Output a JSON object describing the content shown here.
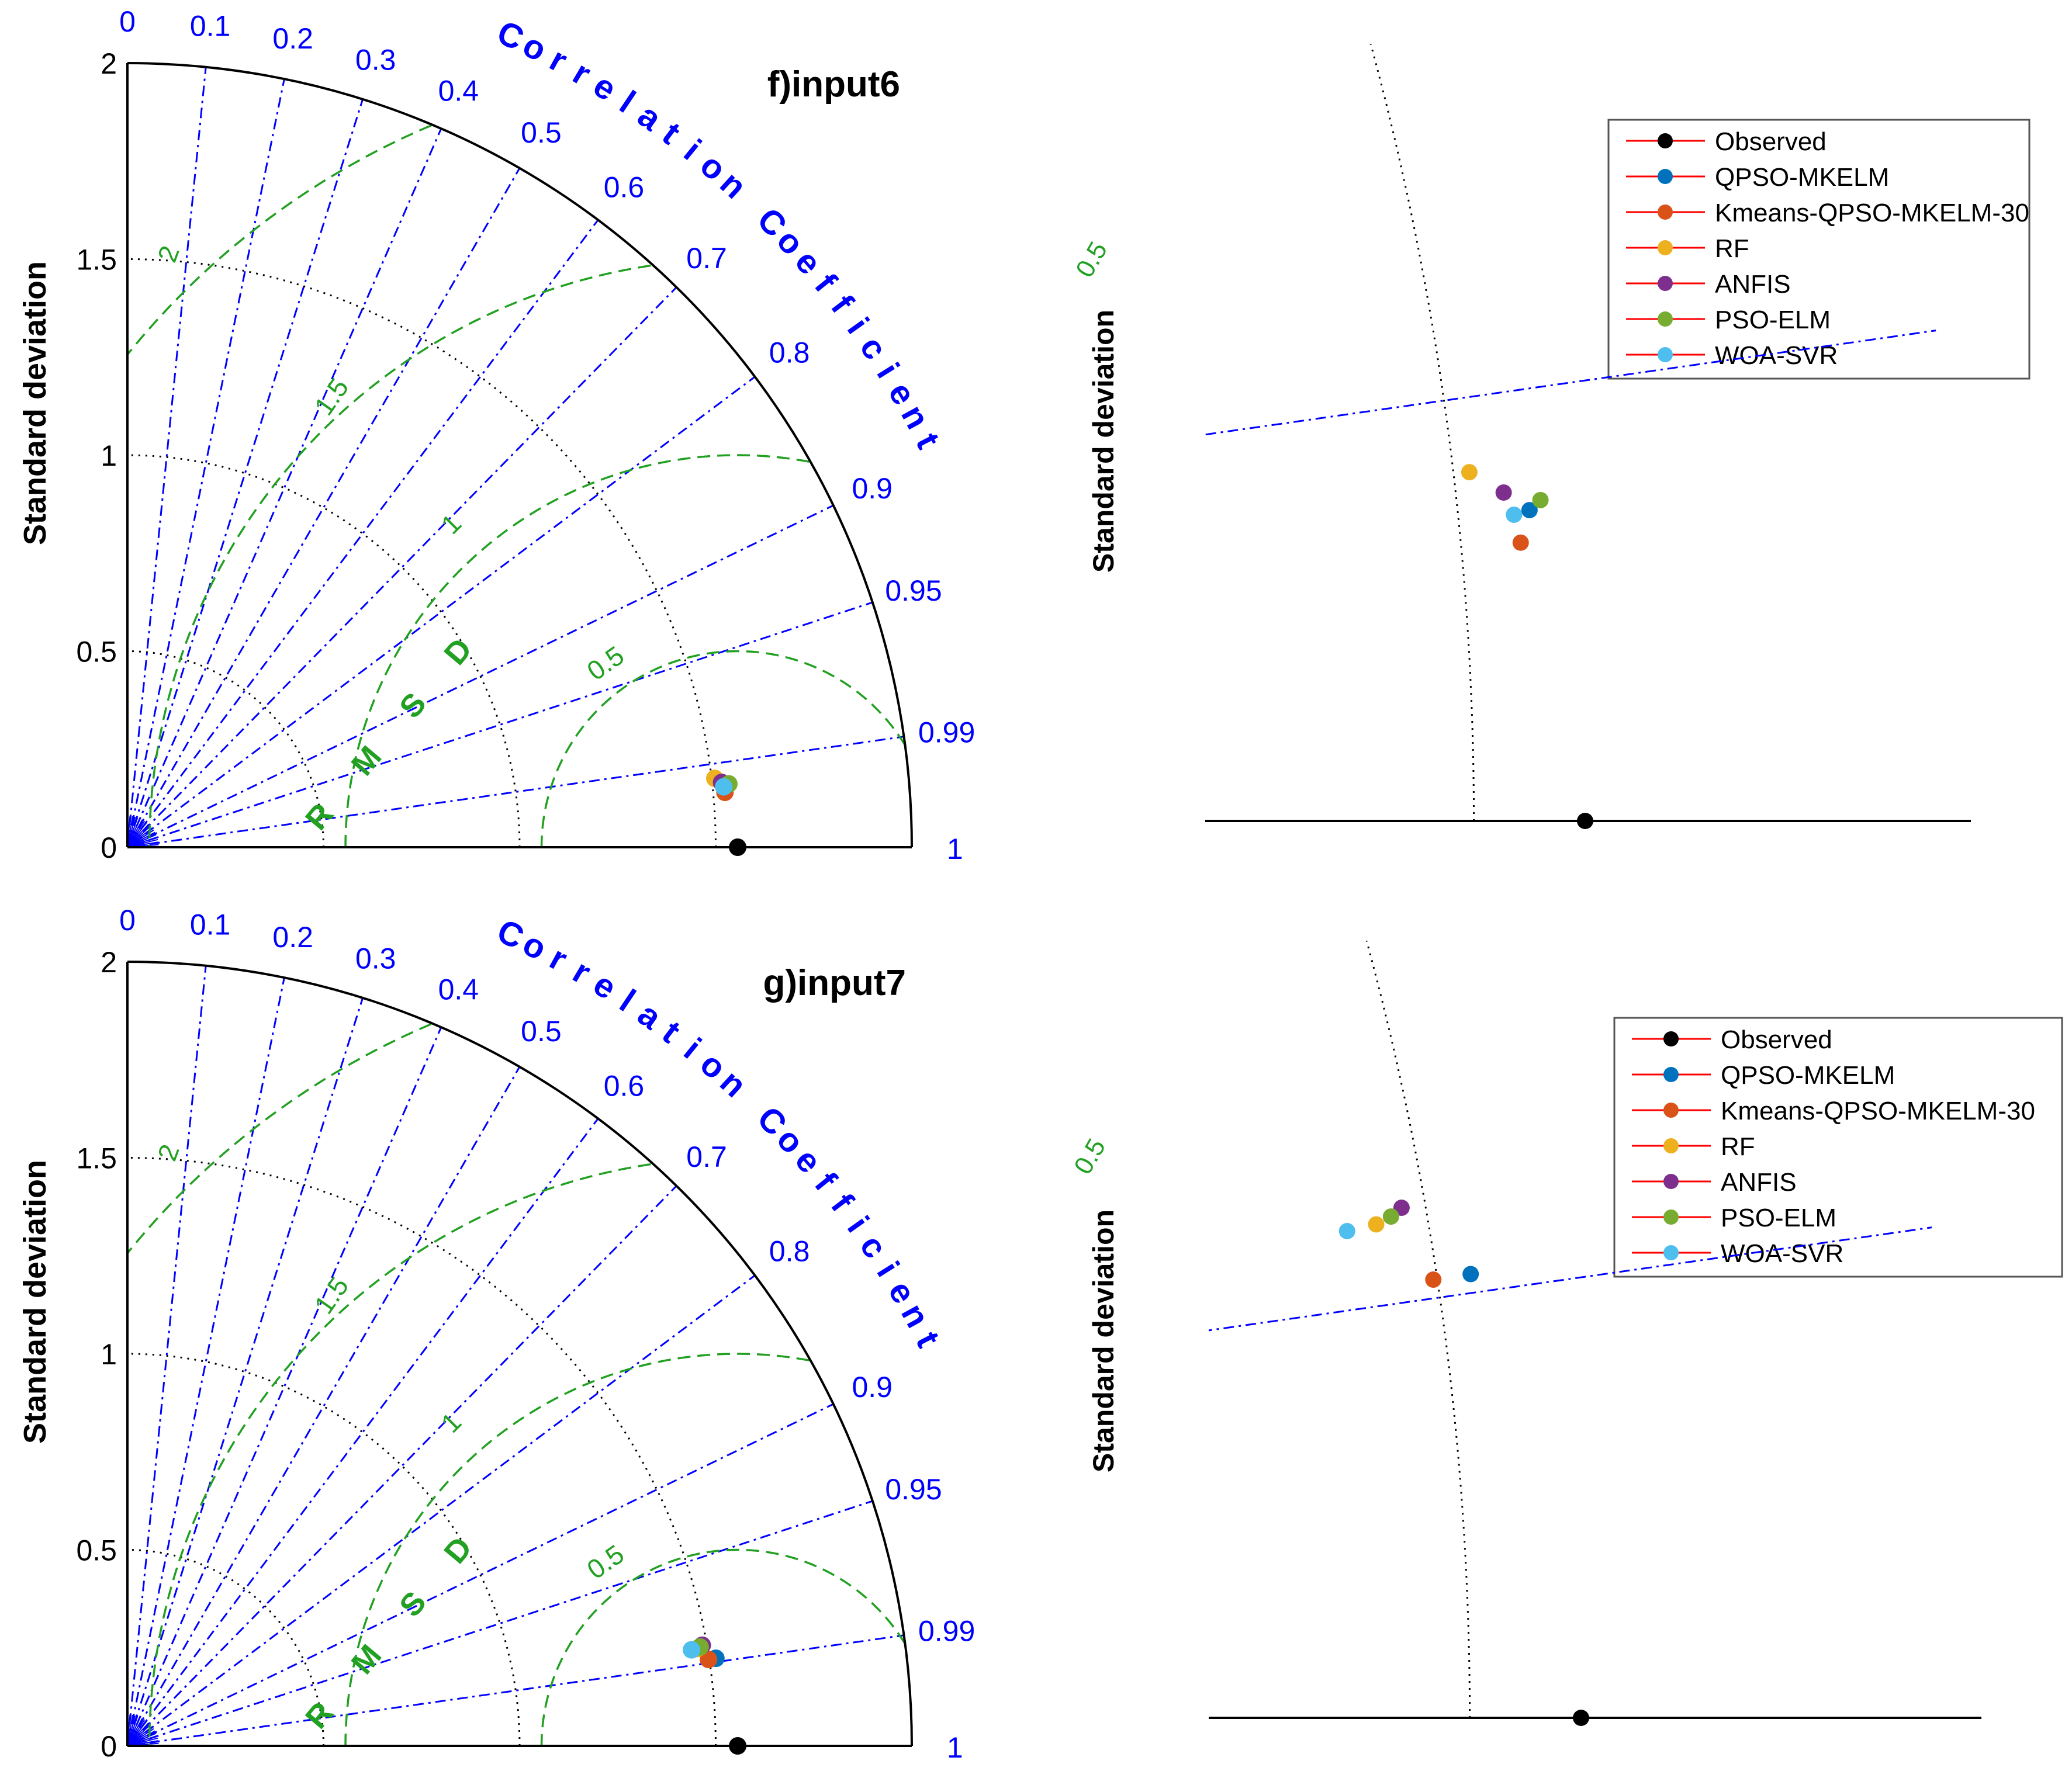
{
  "figure": {
    "y_axis_label": "Standard deviation",
    "zoom_y_axis_label": "Standard deviation",
    "corr_axis_label": "Correlation Coefficient",
    "rmsd_label": "R M S D"
  },
  "colors": {
    "corr_lines": "#0000ff",
    "corr_labels": "#0000ff",
    "rmsd_arcs": "#22a022",
    "std_arcs": "#000000",
    "legend_line": "#ff0000",
    "Observed": "#000000",
    "QPSO-MKELM": "#0072BD",
    "Kmeans-QPSO-MKELM-30": "#D95319",
    "RF": "#EDB120",
    "ANFIS": "#7E2F8E",
    "PSO-ELM": "#77AC30",
    "WOA-SVR": "#4DBEEE"
  },
  "chart_data": [
    {
      "type": "scatter",
      "subtype": "taylor-diagram",
      "title": "f)input6",
      "ylabel": "Standard deviation",
      "corr_label": "Correlation Coefficient",
      "std_range": [
        0,
        2
      ],
      "std_ticks": [
        "0",
        "0.5",
        "1",
        "1.5",
        "2"
      ],
      "std_tick_values": [
        0,
        0.5,
        1,
        1.5,
        2
      ],
      "corr_ticks": [
        "0",
        "0.1",
        "0.2",
        "0.3",
        "0.4",
        "0.5",
        "0.6",
        "0.7",
        "0.8",
        "0.9",
        "0.95",
        "0.99",
        "1"
      ],
      "corr_tick_values": [
        0,
        0.1,
        0.2,
        0.3,
        0.4,
        0.5,
        0.6,
        0.7,
        0.8,
        0.9,
        0.95,
        0.99,
        1
      ],
      "rmsd_ticks": [
        "0.5",
        "1",
        "1.5",
        "2"
      ],
      "rmsd_tick_values": [
        0.5,
        1,
        1.5,
        2
      ],
      "reference_std": 1.556,
      "points": [
        {
          "name": "Observed",
          "corr": 1.0,
          "std": 1.556
        },
        {
          "name": "QPSO-MKELM",
          "corr": 0.9948,
          "std": 1.536
        },
        {
          "name": "Kmeans-QPSO-MKELM-30",
          "corr": 0.9958,
          "std": 1.53
        },
        {
          "name": "RF",
          "corr": 0.9932,
          "std": 1.508
        },
        {
          "name": "ANFIS",
          "corr": 0.9941,
          "std": 1.524
        },
        {
          "name": "PSO-ELM",
          "corr": 0.9945,
          "std": 1.542
        },
        {
          "name": "WOA-SVR",
          "corr": 0.9949,
          "std": 1.528
        }
      ]
    },
    {
      "type": "scatter",
      "subtype": "taylor-diagram",
      "title": "g)input7",
      "ylabel": "Standard deviation",
      "corr_label": "Correlation Coefficient",
      "std_range": [
        0,
        2
      ],
      "std_ticks": [
        "0",
        "0.5",
        "1",
        "1.5",
        "2"
      ],
      "std_tick_values": [
        0,
        0.5,
        1,
        1.5,
        2
      ],
      "corr_ticks": [
        "0",
        "0.1",
        "0.2",
        "0.3",
        "0.4",
        "0.5",
        "0.6",
        "0.7",
        "0.8",
        "0.9",
        "0.95",
        "0.99",
        "1"
      ],
      "corr_tick_values": [
        0,
        0.1,
        0.2,
        0.3,
        0.4,
        0.5,
        0.6,
        0.7,
        0.8,
        0.9,
        0.95,
        0.99,
        1
      ],
      "rmsd_ticks": [
        "0.5",
        "1",
        "1.5",
        "2"
      ],
      "rmsd_tick_values": [
        0.5,
        1,
        1.5,
        2
      ],
      "reference_std": 1.556,
      "points": [
        {
          "name": "Observed",
          "corr": 1.0,
          "std": 1.556
        },
        {
          "name": "QPSO-MKELM",
          "corr": 0.9891,
          "std": 1.517
        },
        {
          "name": "Kmeans-QPSO-MKELM-30",
          "corr": 0.9891,
          "std": 1.498
        },
        {
          "name": "RF",
          "corr": 0.9857,
          "std": 1.474
        },
        {
          "name": "ANFIS",
          "corr": 0.985,
          "std": 1.488
        },
        {
          "name": "PSO-ELM",
          "corr": 0.9854,
          "std": 1.482
        },
        {
          "name": "WOA-SVR",
          "corr": 0.9858,
          "std": 1.459
        }
      ]
    }
  ],
  "zoom_panels": [
    {
      "for": "f)input6",
      "rmsd_label": "0.5",
      "ylabel": "Standard deviation",
      "legend": [
        "Observed",
        "QPSO-MKELM",
        "Kmeans-QPSO-MKELM-30",
        "RF",
        "ANFIS",
        "PSO-ELM",
        "WOA-SVR"
      ]
    },
    {
      "for": "g)input7",
      "rmsd_label": "0.5",
      "ylabel": "Standard deviation",
      "legend": [
        "Observed",
        "QPSO-MKELM",
        "Kmeans-QPSO-MKELM-30",
        "RF",
        "ANFIS",
        "PSO-ELM",
        "WOA-SVR"
      ]
    }
  ]
}
